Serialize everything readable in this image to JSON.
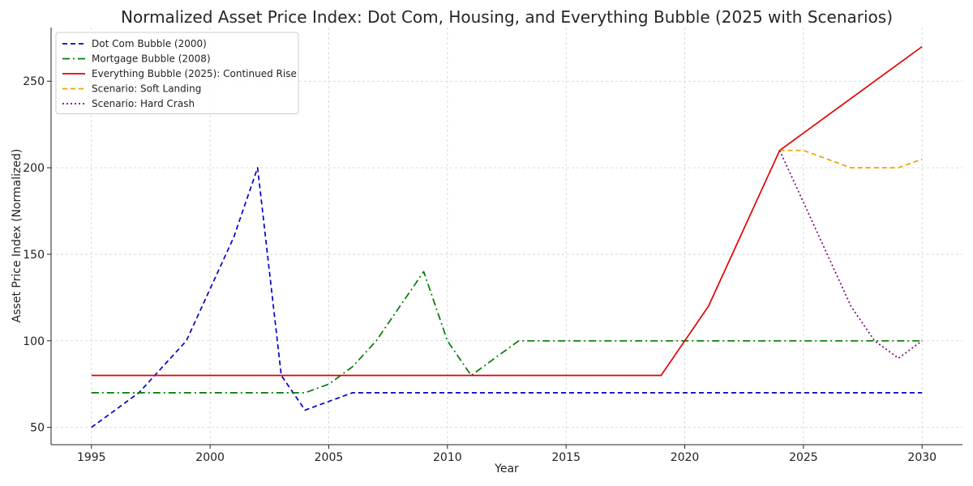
{
  "chart_data": {
    "type": "line",
    "title": "Normalized Asset Price Index: Dot Com, Housing, and Everything Bubble (2025 with Scenarios)",
    "xlabel": "Year",
    "ylabel": "Asset Price Index (Normalized)",
    "xlim": [
      1993.3,
      2031.7
    ],
    "ylim": [
      40,
      281
    ],
    "xticks": [
      1995,
      2000,
      2005,
      2010,
      2015,
      2020,
      2025,
      2030
    ],
    "yticks": [
      50,
      100,
      150,
      200,
      250
    ],
    "grid": true,
    "legend_position": "top-left",
    "series": [
      {
        "name": "Dot Com Bubble (2000)",
        "color": "#0000cc",
        "style": "dashed",
        "x": [
          1995,
          1997,
          1999,
          2001,
          2002,
          2003,
          2004,
          2006,
          2030
        ],
        "y": [
          50,
          70,
          100,
          160,
          200,
          80,
          60,
          70,
          70
        ]
      },
      {
        "name": "Mortgage Bubble (2008)",
        "color": "#007a00",
        "style": "dashdot",
        "x": [
          1995,
          2004,
          2005,
          2006,
          2007,
          2008,
          2009,
          2010,
          2011,
          2013,
          2030
        ],
        "y": [
          70,
          70,
          75,
          85,
          100,
          120,
          140,
          100,
          80,
          100,
          100
        ]
      },
      {
        "name": "Everything Bubble (2025): Continued Rise",
        "color": "#e00000",
        "style": "solid",
        "x": [
          1995,
          2019,
          2020,
          2021,
          2022,
          2023,
          2024,
          2030
        ],
        "y": [
          80,
          80,
          100,
          120,
          150,
          180,
          210,
          270
        ]
      },
      {
        "name": "Scenario: Soft Landing",
        "color": "#f0a000",
        "style": "dashed",
        "x": [
          2024,
          2025,
          2026,
          2027,
          2028,
          2029,
          2030
        ],
        "y": [
          210,
          210,
          205,
          200,
          200,
          200,
          205
        ]
      },
      {
        "name": "Scenario: Hard Crash",
        "color": "#800080",
        "style": "dotted",
        "x": [
          2024,
          2025,
          2026,
          2027,
          2028,
          2029,
          2030
        ],
        "y": [
          210,
          180,
          150,
          120,
          100,
          90,
          100
        ]
      }
    ]
  }
}
